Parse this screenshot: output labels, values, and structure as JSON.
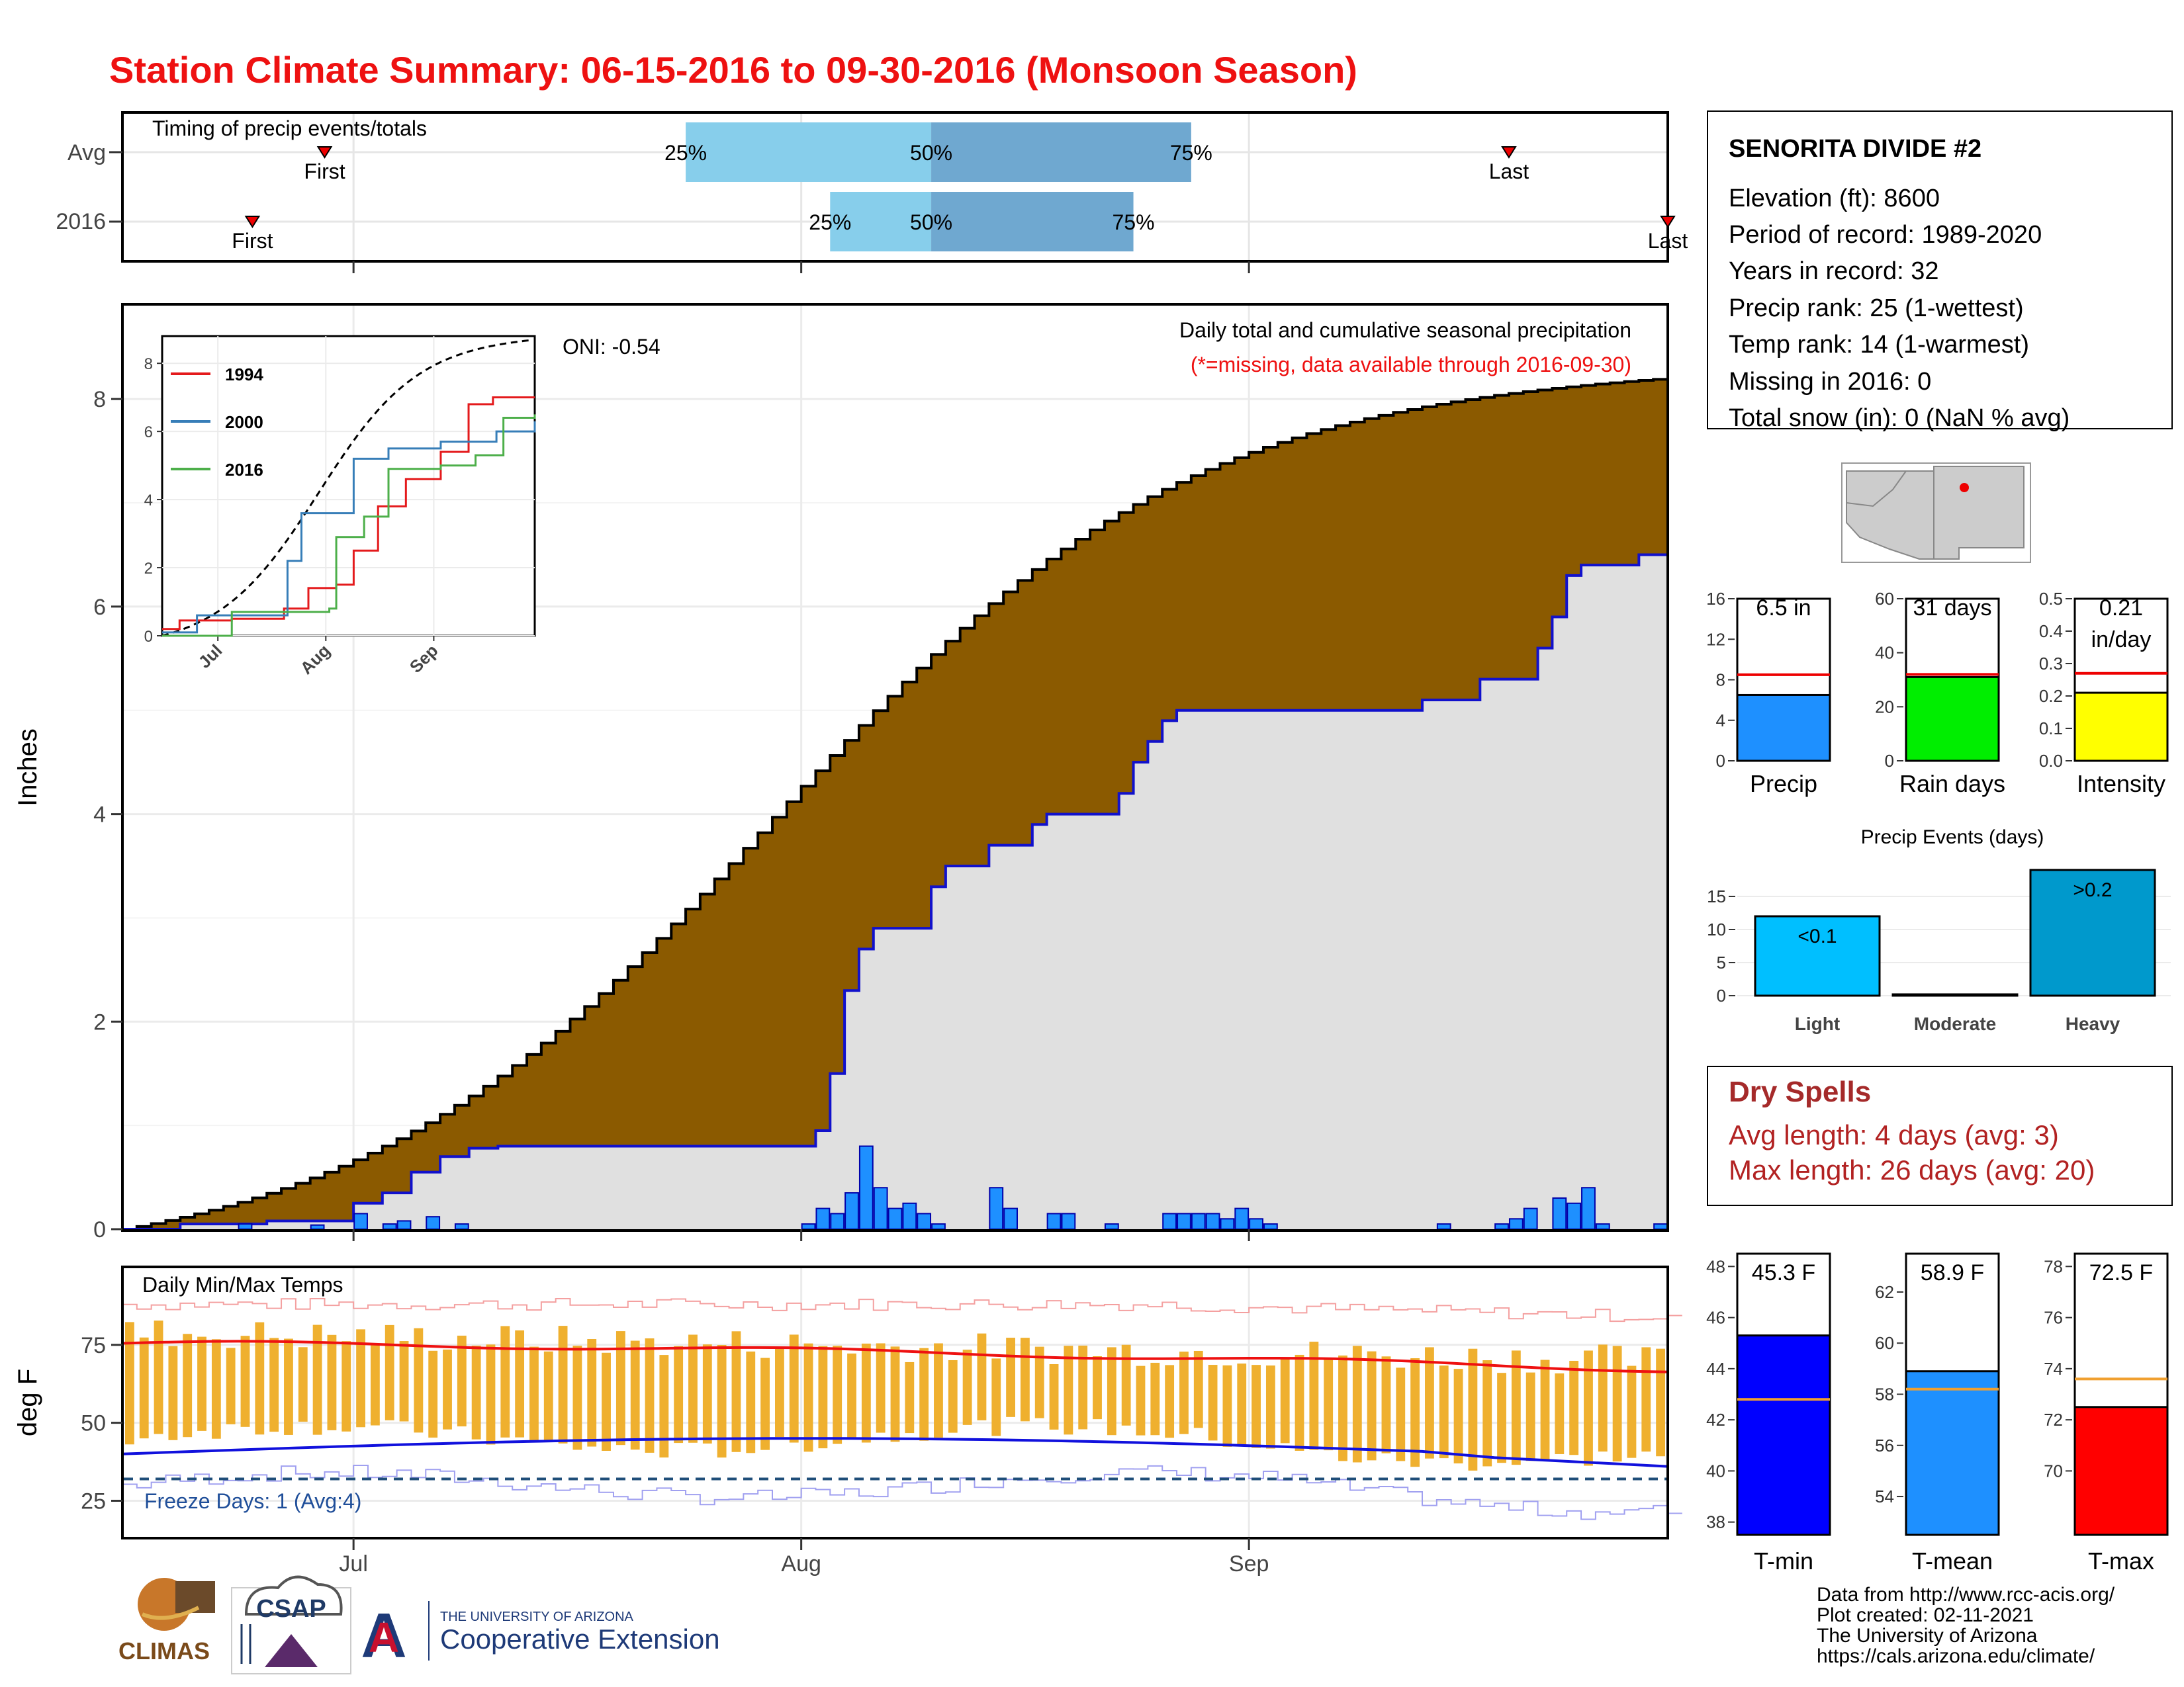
{
  "title": "Station Climate Summary: 06-15-2016 to 09-30-2016 (Monsoon Season)",
  "colors": {
    "title_red": "#ee1111",
    "brown_fill": "#8b5a00",
    "observed_fill": "#e0e0e0",
    "bar_blue": "#1e90ff",
    "avg_quartile_light": "#87ceeb",
    "avg_quartile_dark": "#6fa8d0",
    "temp_bar": "#efb02f",
    "tmax_line": "#ee1111",
    "tmin_line": "#1111dd"
  },
  "timing": {
    "label": "Timing of precip events/totals",
    "rows": [
      "Avg",
      "2016"
    ],
    "first_label": "First",
    "last_label": "Last",
    "avg": {
      "first": "2016-06-29",
      "q25": "2016-07-24",
      "q50": "2016-08-10",
      "q75": "2016-08-28",
      "last": "2016-09-19"
    },
    "y2016": {
      "first": "2016-06-24",
      "q25": "2016-08-03",
      "q50": "2016-08-10",
      "q75": "2016-08-24",
      "last": "2016-09-30"
    },
    "q25_label": "25%",
    "q50_label": "50%",
    "q75_label": "75%"
  },
  "precip_panel": {
    "ylabel": "Inches",
    "oni": "ONI: -0.54",
    "subtitle": "Daily total and cumulative seasonal precipitation",
    "missing_note": "(*=missing, data available through 2016-09-30)",
    "yticks": [
      "0",
      "2",
      "4",
      "6",
      "8"
    ],
    "xticks": [
      "Jul",
      "Aug",
      "Sep"
    ]
  },
  "inset": {
    "yticks": [
      "0",
      "2",
      "4",
      "6",
      "8"
    ],
    "xticks": [
      "Jul",
      "Aug",
      "Sep"
    ],
    "legend": [
      {
        "name": "1994",
        "color": "#e41a1c"
      },
      {
        "name": "2000",
        "color": "#377eb8"
      },
      {
        "name": "2016",
        "color": "#4daf4a"
      }
    ]
  },
  "temp_panel": {
    "ylabel": "deg F",
    "label": "Daily Min/Max Temps",
    "freeze": "Freeze Days: 1 (Avg:4)",
    "yticks": [
      "25",
      "50",
      "75"
    ]
  },
  "station": {
    "name": "SENORITA DIVIDE #2",
    "lines": [
      "Elevation (ft): 8600",
      "Period of record: 1989-2020",
      "Years in record: 32",
      "Precip rank: 25 (1-wettest)",
      "Temp rank: 14 (1-warmest)",
      "Missing in 2016: 0",
      "Total snow (in): 0 (NaN % avg)"
    ]
  },
  "mini_bars": [
    {
      "label": "Precip",
      "value_text": "6.5 in",
      "value": 6.5,
      "avg": 8.5,
      "ymax": 16,
      "ticks": [
        "0",
        "4",
        "8",
        "12",
        "16"
      ],
      "color": "#1e90ff"
    },
    {
      "label": "Rain days",
      "value_text": "31 days",
      "value": 31,
      "avg": 32,
      "ymax": 60,
      "ticks": [
        "0",
        "20",
        "40",
        "60"
      ],
      "color": "#00ee00"
    },
    {
      "label": "Intensity",
      "value_text": "0.21\nin/day",
      "value": 0.21,
      "avg": 0.27,
      "ymax": 0.5,
      "ticks": [
        "0.0",
        "0.1",
        "0.2",
        "0.3",
        "0.4",
        "0.5"
      ],
      "color": "#ffff00"
    }
  ],
  "precip_events": {
    "title": "Precip Events (days)",
    "yticks": [
      "0",
      "5",
      "10",
      "15"
    ],
    "bars": [
      {
        "label": "Light",
        "bar_label": "<0.1",
        "value": 12,
        "color": "#00bfff"
      },
      {
        "label": "Moderate",
        "bar_label": "",
        "value": 0,
        "color": "#00bfff"
      },
      {
        "label": "Heavy",
        "bar_label": ">0.2",
        "value": 19,
        "color": "#0099cc"
      }
    ]
  },
  "dry_spells": {
    "title": "Dry Spells",
    "avg_length": "Avg length: 4 days (avg: 3)",
    "max_length": "Max length: 26 days (avg: 20)"
  },
  "temp_bars": [
    {
      "label": "T-min",
      "value_text": "45.3 F",
      "value": 45.3,
      "avg": 42.8,
      "ymin": 37.5,
      "ymax": 48.5,
      "ticks": [
        "38",
        "40",
        "42",
        "44",
        "46",
        "48"
      ],
      "color": "#0000ff"
    },
    {
      "label": "T-mean",
      "value_text": "58.9 F",
      "value": 58.9,
      "avg": 58.2,
      "ymin": 52.5,
      "ymax": 63.5,
      "ticks": [
        "54",
        "56",
        "58",
        "60",
        "62"
      ],
      "color": "#1e90ff"
    },
    {
      "label": "T-max",
      "value_text": "72.5 F",
      "value": 72.5,
      "avg": 73.6,
      "ymin": 67.5,
      "ymax": 78.5,
      "ticks": [
        "70",
        "72",
        "74",
        "76",
        "78"
      ],
      "color": "#ff0000"
    }
  ],
  "footer": {
    "lines": [
      "Data from http://www.rcc-acis.org/",
      "Plot created: 02-11-2021",
      "The University of Arizona",
      "https://cals.arizona.edu/climate/"
    ],
    "logo_climas": "CLIMAS",
    "logo_csap": "CSAP",
    "ua_small": "THE UNIVERSITY OF ARIZONA",
    "ua_big": "Cooperative Extension"
  },
  "chart_data": {
    "type": "area",
    "xlim": [
      "2016-06-15",
      "2016-09-30"
    ],
    "ylim": [
      0,
      8.9
    ],
    "avg_cumulative_end": 8.2,
    "obs_cumulative": [
      [
        "2016-06-15",
        0.0
      ],
      [
        "2016-06-19",
        0.05
      ],
      [
        "2016-06-25",
        0.08
      ],
      [
        "2016-07-01",
        0.25
      ],
      [
        "2016-07-03",
        0.35
      ],
      [
        "2016-07-05",
        0.55
      ],
      [
        "2016-07-07",
        0.7
      ],
      [
        "2016-07-09",
        0.78
      ],
      [
        "2016-07-11",
        0.8
      ],
      [
        "2016-08-01",
        0.8
      ],
      [
        "2016-08-02",
        0.95
      ],
      [
        "2016-08-03",
        1.5
      ],
      [
        "2016-08-04",
        2.3
      ],
      [
        "2016-08-05",
        2.7
      ],
      [
        "2016-08-06",
        2.9
      ],
      [
        "2016-08-09",
        2.9
      ],
      [
        "2016-08-10",
        3.3
      ],
      [
        "2016-08-11",
        3.5
      ],
      [
        "2016-08-13",
        3.5
      ],
      [
        "2016-08-14",
        3.7
      ],
      [
        "2016-08-17",
        3.9
      ],
      [
        "2016-08-18",
        4.0
      ],
      [
        "2016-08-22",
        4.0
      ],
      [
        "2016-08-23",
        4.2
      ],
      [
        "2016-08-24",
        4.5
      ],
      [
        "2016-08-25",
        4.7
      ],
      [
        "2016-08-26",
        4.9
      ],
      [
        "2016-08-27",
        5.0
      ],
      [
        "2016-09-12",
        5.0
      ],
      [
        "2016-09-13",
        5.1
      ],
      [
        "2016-09-16",
        5.1
      ],
      [
        "2016-09-17",
        5.3
      ],
      [
        "2016-09-20",
        5.3
      ],
      [
        "2016-09-21",
        5.6
      ],
      [
        "2016-09-22",
        5.9
      ],
      [
        "2016-09-23",
        6.3
      ],
      [
        "2016-09-24",
        6.4
      ],
      [
        "2016-09-28",
        6.5
      ],
      [
        "2016-09-30",
        6.5
      ]
    ],
    "daily_precip": [
      [
        "2016-06-23",
        0.05
      ],
      [
        "2016-06-28",
        0.04
      ],
      [
        "2016-07-01",
        0.15
      ],
      [
        "2016-07-03",
        0.05
      ],
      [
        "2016-07-04",
        0.08
      ],
      [
        "2016-07-06",
        0.12
      ],
      [
        "2016-07-08",
        0.05
      ],
      [
        "2016-08-01",
        0.05
      ],
      [
        "2016-08-02",
        0.2
      ],
      [
        "2016-08-03",
        0.15
      ],
      [
        "2016-08-04",
        0.35
      ],
      [
        "2016-08-05",
        0.8
      ],
      [
        "2016-08-06",
        0.4
      ],
      [
        "2016-08-07",
        0.2
      ],
      [
        "2016-08-08",
        0.25
      ],
      [
        "2016-08-09",
        0.15
      ],
      [
        "2016-08-10",
        0.05
      ],
      [
        "2016-08-14",
        0.4
      ],
      [
        "2016-08-15",
        0.2
      ],
      [
        "2016-08-18",
        0.15
      ],
      [
        "2016-08-19",
        0.15
      ],
      [
        "2016-08-22",
        0.05
      ],
      [
        "2016-08-26",
        0.15
      ],
      [
        "2016-08-27",
        0.15
      ],
      [
        "2016-08-28",
        0.15
      ],
      [
        "2016-08-29",
        0.15
      ],
      [
        "2016-08-30",
        0.1
      ],
      [
        "2016-08-31",
        0.2
      ],
      [
        "2016-09-01",
        0.1
      ],
      [
        "2016-09-02",
        0.05
      ],
      [
        "2016-09-14",
        0.05
      ],
      [
        "2016-09-18",
        0.05
      ],
      [
        "2016-09-19",
        0.1
      ],
      [
        "2016-09-20",
        0.2
      ],
      [
        "2016-09-22",
        0.3
      ],
      [
        "2016-09-23",
        0.25
      ],
      [
        "2016-09-24",
        0.4
      ],
      [
        "2016-09-25",
        0.05
      ],
      [
        "2016-09-29",
        0.05
      ]
    ]
  }
}
